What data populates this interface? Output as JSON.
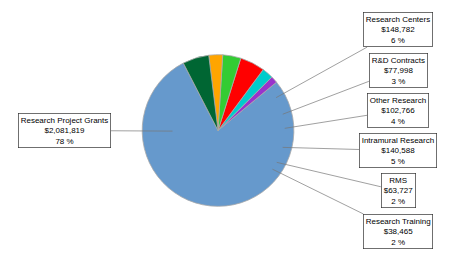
{
  "chart_data": {
    "type": "pie",
    "categories": [
      "Research Project Grants",
      "Research Training",
      "RMS",
      "Intramural Research",
      "Other Research",
      "R&D Contracts",
      "Research Centers"
    ],
    "values": [
      2081819,
      38465,
      63727,
      140588,
      102766,
      77998,
      148782
    ],
    "value_labels": [
      "$2,081,819",
      "$38,465",
      "$63,727",
      "$140,588",
      "$102,766",
      "$77,998",
      "$148,782"
    ],
    "percents": [
      78,
      2,
      2,
      5,
      4,
      3,
      6
    ],
    "percent_labels": [
      "78 %",
      "2 %",
      "2 %",
      "5 %",
      "4 %",
      "3 %",
      "6 %"
    ],
    "colors": [
      "#6699CC",
      "#9933CC",
      "#00CCCC",
      "#FF0000",
      "#33CC33",
      "#FFA500",
      "#006633"
    ],
    "data_labels": true
  }
}
